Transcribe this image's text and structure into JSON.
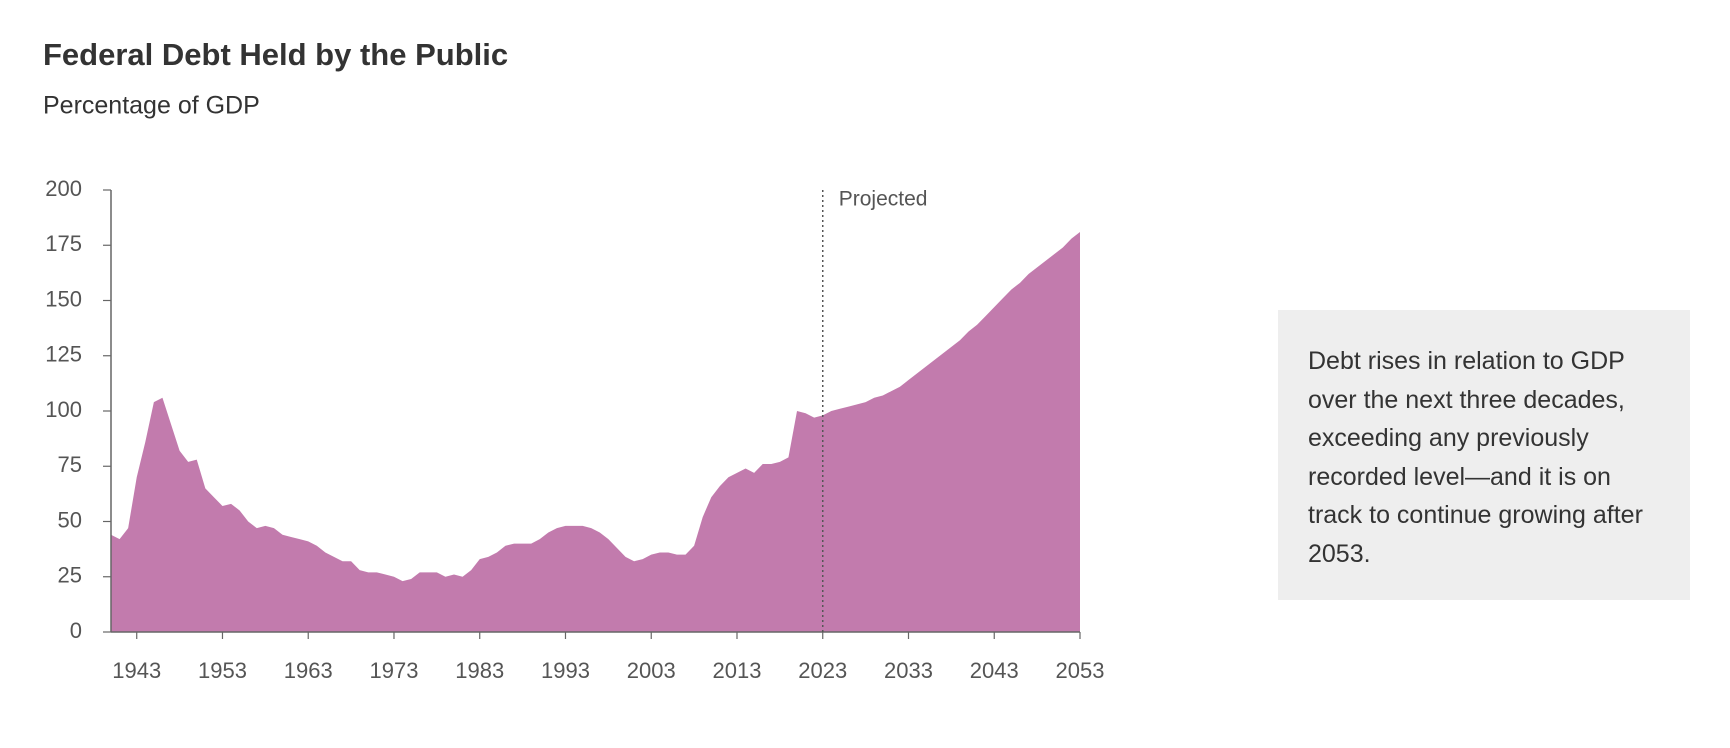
{
  "chart_data": {
    "type": "area",
    "title": "Federal Debt Held by the Public",
    "subtitle": "Percentage of GDP",
    "x": [
      1940,
      1941,
      1942,
      1943,
      1944,
      1945,
      1946,
      1947,
      1948,
      1949,
      1950,
      1951,
      1952,
      1953,
      1954,
      1955,
      1956,
      1957,
      1958,
      1959,
      1960,
      1961,
      1962,
      1963,
      1964,
      1965,
      1966,
      1967,
      1968,
      1969,
      1970,
      1971,
      1972,
      1973,
      1974,
      1975,
      1976,
      1977,
      1978,
      1979,
      1980,
      1981,
      1982,
      1983,
      1984,
      1985,
      1986,
      1987,
      1988,
      1989,
      1990,
      1991,
      1992,
      1993,
      1994,
      1995,
      1996,
      1997,
      1998,
      1999,
      2000,
      2001,
      2002,
      2003,
      2004,
      2005,
      2006,
      2007,
      2008,
      2009,
      2010,
      2011,
      2012,
      2013,
      2014,
      2015,
      2016,
      2017,
      2018,
      2019,
      2020,
      2021,
      2022,
      2023,
      2024,
      2025,
      2026,
      2027,
      2028,
      2029,
      2030,
      2031,
      2032,
      2033,
      2034,
      2035,
      2036,
      2037,
      2038,
      2039,
      2040,
      2041,
      2042,
      2043,
      2044,
      2045,
      2046,
      2047,
      2048,
      2049,
      2050,
      2051,
      2052,
      2053
    ],
    "values": [
      44,
      42,
      47,
      70,
      86,
      104,
      106,
      94,
      82,
      77,
      78,
      65,
      61,
      57,
      58,
      55,
      50,
      47,
      48,
      47,
      44,
      43,
      42,
      41,
      39,
      36,
      34,
      32,
      32,
      28,
      27,
      27,
      26,
      25,
      23,
      24,
      27,
      27,
      27,
      25,
      26,
      25,
      28,
      33,
      34,
      36,
      39,
      40,
      40,
      40,
      42,
      45,
      47,
      48,
      48,
      48,
      47,
      45,
      42,
      38,
      34,
      32,
      33,
      35,
      36,
      36,
      35,
      35,
      39,
      52,
      61,
      66,
      70,
      72,
      74,
      72,
      76,
      76,
      77,
      79,
      100,
      99,
      97,
      98,
      100,
      101,
      102,
      103,
      104,
      106,
      107,
      109,
      111,
      114,
      117,
      120,
      123,
      126,
      129,
      132,
      136,
      139,
      143,
      147,
      151,
      155,
      158,
      162,
      165,
      168,
      171,
      174,
      178,
      181
    ],
    "color": "#c27bad",
    "xlim": [
      1940,
      2053
    ],
    "xticks": [
      1943,
      1953,
      1963,
      1973,
      1983,
      1993,
      2003,
      2013,
      2023,
      2033,
      2043,
      2053
    ],
    "ylim": [
      0,
      200
    ],
    "yticks": [
      0,
      25,
      50,
      75,
      100,
      125,
      150,
      175,
      200
    ],
    "annotation": {
      "x": 2023,
      "label": "Projected"
    },
    "note": "Debt rises in relation to GDP over the next three decades, exceeding any previously recorded level—and it is on track to continue growing after 2053."
  }
}
